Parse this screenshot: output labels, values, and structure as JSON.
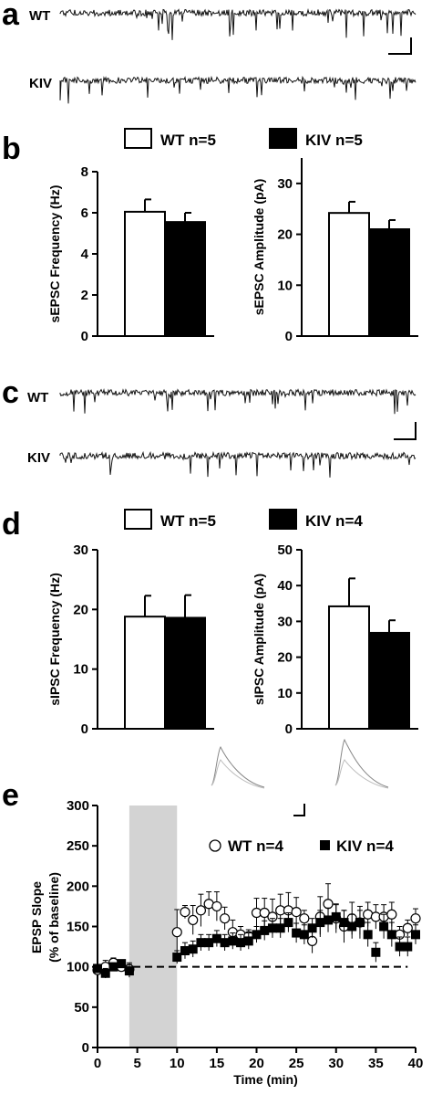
{
  "panels": {
    "a": {
      "letter": "a",
      "traces": [
        "WT",
        "KIV"
      ]
    },
    "b": {
      "letter": "b"
    },
    "c": {
      "letter": "c",
      "traces": [
        "WT",
        "KIV"
      ]
    },
    "d": {
      "letter": "d"
    },
    "e": {
      "letter": "e"
    }
  },
  "colors": {
    "wt_fill": "#ffffff",
    "kiv_fill": "#000000",
    "shade": "#d3d3d3"
  },
  "chart_data": [
    {
      "id": "b-left",
      "type": "bar",
      "categories": [
        "WT",
        "KIV"
      ],
      "legend": [
        "WT  n=5",
        "KIV  n=5"
      ],
      "values": [
        6.05,
        5.55
      ],
      "errors": [
        0.6,
        0.45
      ],
      "ylabel": "sEPSC Frequency (Hz)",
      "ylim": [
        0,
        8
      ],
      "yticks": [
        0,
        2,
        4,
        6,
        8
      ]
    },
    {
      "id": "b-right",
      "type": "bar",
      "categories": [
        "WT",
        "KIV"
      ],
      "legend": [
        "WT  n=5",
        "KIV  n=5"
      ],
      "values": [
        24.2,
        21.0
      ],
      "errors": [
        2.2,
        1.8
      ],
      "ylabel": "sEPSC Amplitude (pA)",
      "ylim": [
        0,
        35
      ],
      "yticks": [
        0,
        10,
        20,
        30
      ]
    },
    {
      "id": "d-left",
      "type": "bar",
      "categories": [
        "WT",
        "KIV"
      ],
      "legend": [
        "WT  n=5",
        "KIV  n=4"
      ],
      "values": [
        18.8,
        18.6
      ],
      "errors": [
        3.5,
        3.8
      ],
      "ylabel": "sIPSC Frequency (Hz)",
      "ylim": [
        0,
        30
      ],
      "yticks": [
        0,
        10,
        20,
        30
      ]
    },
    {
      "id": "d-right",
      "type": "bar",
      "categories": [
        "WT",
        "KIV"
      ],
      "legend": [
        "WT  n=5",
        "KIV  n=4"
      ],
      "values": [
        34.2,
        26.8
      ],
      "errors": [
        7.8,
        3.5
      ],
      "ylabel": "sIPSC Amplitude (pA)",
      "ylim": [
        0,
        50
      ],
      "yticks": [
        0,
        10,
        20,
        30,
        40,
        50
      ]
    },
    {
      "id": "e",
      "type": "scatter",
      "xlabel": "Time (min)",
      "ylabel": "EPSP Slope",
      "ylabel2": "(% of baseline)",
      "xlim": [
        0,
        40
      ],
      "ylim": [
        0,
        300
      ],
      "xticks": [
        0,
        5,
        10,
        15,
        20,
        25,
        30,
        35,
        40
      ],
      "yticks": [
        0,
        50,
        100,
        150,
        200,
        250,
        300
      ],
      "shaded_interval": [
        4,
        10
      ],
      "baseline": 100,
      "series": [
        {
          "name": "WT n=4",
          "marker": "open-circle",
          "x": [
            0,
            1,
            2,
            3,
            4,
            10,
            11,
            12,
            13,
            14,
            15,
            16,
            17,
            18,
            19,
            20,
            21,
            22,
            23,
            24,
            25,
            26,
            27,
            28,
            29,
            30,
            31,
            32,
            33,
            34,
            35,
            36,
            37,
            38,
            39,
            40
          ],
          "y": [
            96,
            100,
            105,
            100,
            97,
            143,
            168,
            158,
            170,
            178,
            175,
            160,
            143,
            140,
            138,
            167,
            167,
            162,
            170,
            170,
            168,
            160,
            132,
            162,
            178,
            160,
            150,
            160,
            155,
            165,
            162,
            162,
            165,
            140,
            148,
            160
          ],
          "err": [
            5,
            8,
            6,
            5,
            8,
            28,
            8,
            18,
            20,
            15,
            18,
            14,
            15,
            10,
            8,
            18,
            18,
            22,
            20,
            22,
            18,
            10,
            15,
            25,
            25,
            18,
            20,
            20,
            20,
            15,
            15,
            15,
            15,
            10,
            10,
            12
          ]
        },
        {
          "name": "KIV n=4",
          "marker": "filled-square",
          "x": [
            0,
            1,
            2,
            3,
            4,
            10,
            11,
            12,
            13,
            14,
            15,
            16,
            17,
            18,
            19,
            20,
            21,
            22,
            23,
            24,
            25,
            26,
            27,
            28,
            29,
            30,
            31,
            32,
            33,
            34,
            35,
            36,
            37,
            38,
            39,
            40
          ],
          "y": [
            98,
            92,
            100,
            104,
            95,
            112,
            120,
            122,
            130,
            130,
            135,
            130,
            132,
            130,
            132,
            140,
            145,
            148,
            148,
            155,
            142,
            140,
            148,
            155,
            158,
            162,
            155,
            150,
            155,
            140,
            118,
            150,
            140,
            125,
            125,
            140
          ],
          "err": [
            5,
            6,
            5,
            4,
            8,
            8,
            10,
            10,
            10,
            10,
            10,
            10,
            10,
            10,
            10,
            10,
            12,
            12,
            12,
            12,
            12,
            12,
            12,
            15,
            15,
            15,
            15,
            15,
            15,
            15,
            12,
            15,
            15,
            12,
            12,
            12
          ]
        }
      ]
    }
  ]
}
